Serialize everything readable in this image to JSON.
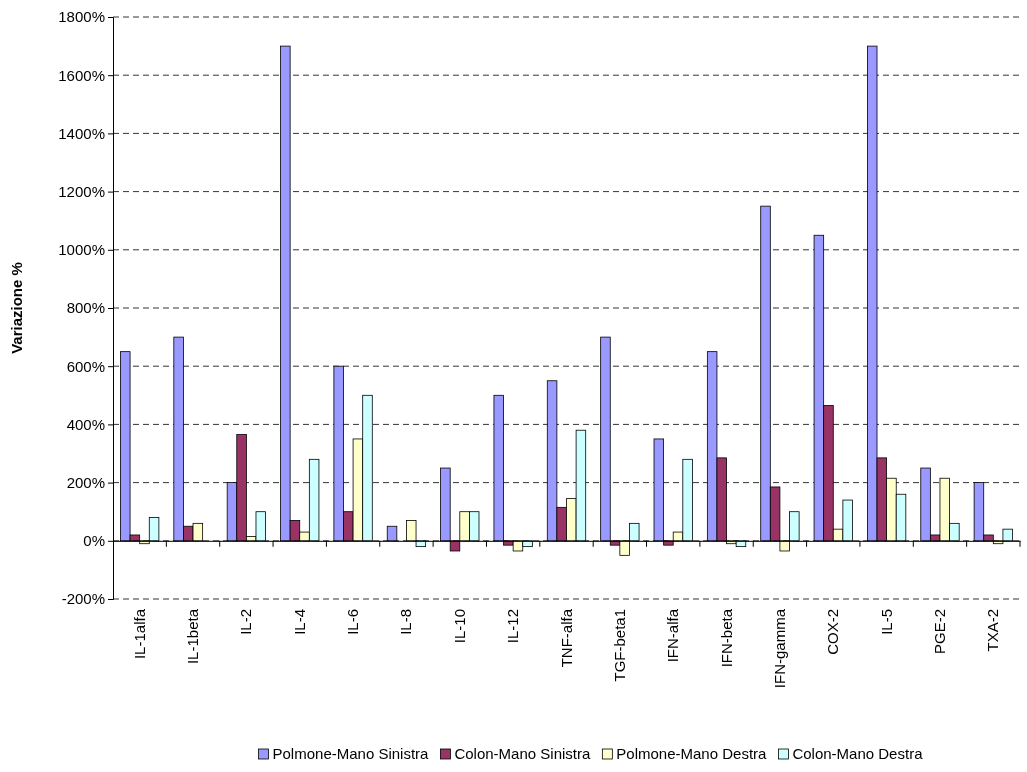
{
  "chart_data": {
    "type": "bar",
    "ylabel": "Variazione %",
    "categories": [
      "IL-1alfa",
      "IL-1beta",
      "IL-2",
      "IL-4",
      "IL-6",
      "IL-8",
      "IL-10",
      "IL-12",
      "TNF-alfa",
      "TGF-beta1",
      "IFN-alfa",
      "IFN-beta",
      "IFN-gamma",
      "COX-2",
      "IL-5",
      "PGE-2",
      "TXA-2"
    ],
    "series": [
      {
        "name": "Polmone-Mano Sinistra",
        "color": "#9999ff",
        "values": [
          650,
          700,
          200,
          1700,
          600,
          50,
          250,
          500,
          550,
          700,
          350,
          650,
          1150,
          1050,
          1700,
          250,
          200
        ]
      },
      {
        "name": "Colon-Mano Sinistra",
        "color": "#993366",
        "values": [
          20,
          50,
          365,
          70,
          100,
          null,
          -35,
          -15,
          115,
          -15,
          -15,
          285,
          185,
          465,
          285,
          20,
          20
        ]
      },
      {
        "name": "Polmone-Mano Destra",
        "color": "#ffffcc",
        "values": [
          -10,
          60,
          15,
          30,
          350,
          70,
          100,
          -35,
          145,
          -50,
          30,
          -10,
          -35,
          40,
          215,
          215,
          -10
        ]
      },
      {
        "name": "Colon-Mano Destra",
        "color": "#ccffff",
        "values": [
          80,
          null,
          100,
          280,
          500,
          -20,
          100,
          -20,
          380,
          60,
          280,
          -20,
          100,
          140,
          160,
          60,
          40
        ]
      }
    ],
    "ylim": [
      -200,
      1800
    ],
    "yticks": [
      {
        "value": -200,
        "label": "-200%"
      },
      {
        "value": 0,
        "label": "0%"
      },
      {
        "value": 200,
        "label": "200%"
      },
      {
        "value": 400,
        "label": "400%"
      },
      {
        "value": 600,
        "label": "600%"
      },
      {
        "value": 800,
        "label": "800%"
      },
      {
        "value": 1000,
        "label": "1000%"
      },
      {
        "value": 1200,
        "label": "1200%"
      },
      {
        "value": 1400,
        "label": "1400%"
      },
      {
        "value": 1600,
        "label": "1600%"
      },
      {
        "value": 1800,
        "label": "1800%"
      }
    ],
    "grid": "y",
    "legend": "bottom"
  }
}
